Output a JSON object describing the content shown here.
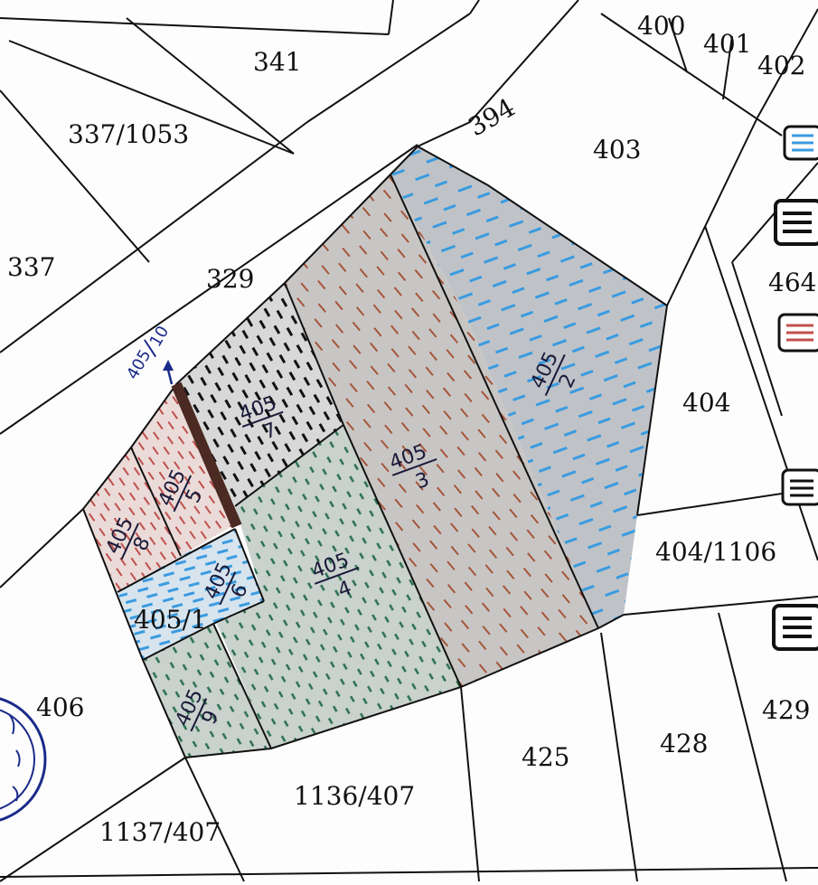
{
  "parcels": [
    {
      "id": "341",
      "label": "341"
    },
    {
      "id": "337-1053",
      "label": "337/1053"
    },
    {
      "id": "337",
      "label": "337"
    },
    {
      "id": "329",
      "label": "329"
    },
    {
      "id": "394",
      "label": "394"
    },
    {
      "id": "400",
      "label": "400"
    },
    {
      "id": "401",
      "label": "401"
    },
    {
      "id": "402",
      "label": "402"
    },
    {
      "id": "403",
      "label": "403"
    },
    {
      "id": "464",
      "label": "464"
    },
    {
      "id": "404",
      "label": "404"
    },
    {
      "id": "404-1106",
      "label": "404/1106"
    },
    {
      "id": "429",
      "label": "429"
    },
    {
      "id": "428",
      "label": "428"
    },
    {
      "id": "425",
      "label": "425"
    },
    {
      "id": "1136-407",
      "label": "1136/407"
    },
    {
      "id": "1137-407",
      "label": "1137/407"
    },
    {
      "id": "406",
      "label": "406"
    },
    {
      "id": "405-1",
      "label": "405/1"
    }
  ],
  "subplots": [
    {
      "id": "405-2",
      "num": "405",
      "den": "2",
      "fill_color": "#5aa7e0"
    },
    {
      "id": "405-3",
      "num": "405",
      "den": "3",
      "fill_color": "#b05a3c"
    },
    {
      "id": "405-4",
      "num": "405",
      "den": "4",
      "fill_color": "#2f7a55"
    },
    {
      "id": "405-5",
      "num": "405",
      "den": "5",
      "fill_color": "#c0504d"
    },
    {
      "id": "405-6",
      "num": "405",
      "den": "6",
      "fill_color": "#3a8fd0"
    },
    {
      "id": "405-7",
      "num": "405",
      "den": "7",
      "fill_color": "#111111"
    },
    {
      "id": "405-8",
      "num": "405",
      "den": "8",
      "fill_color": "#d04040"
    },
    {
      "id": "405-9",
      "num": "405",
      "den": "9",
      "fill_color": "#2f7a55"
    },
    {
      "id": "405-10",
      "num": "405",
      "den": "10",
      "fill_color": "#1b2b8a"
    }
  ],
  "legend_icons": [
    {
      "name": "blue-hatch-icon",
      "color": "#3a8fd0"
    },
    {
      "name": "black-hatch-icon",
      "color": "#111111"
    },
    {
      "name": "red-hatch-icon",
      "color": "#c0504d"
    },
    {
      "name": "black-hatch-icon-2",
      "color": "#111111"
    },
    {
      "name": "black-hatch-icon-3",
      "color": "#111111"
    }
  ],
  "seal_icon": "official-seal-icon"
}
